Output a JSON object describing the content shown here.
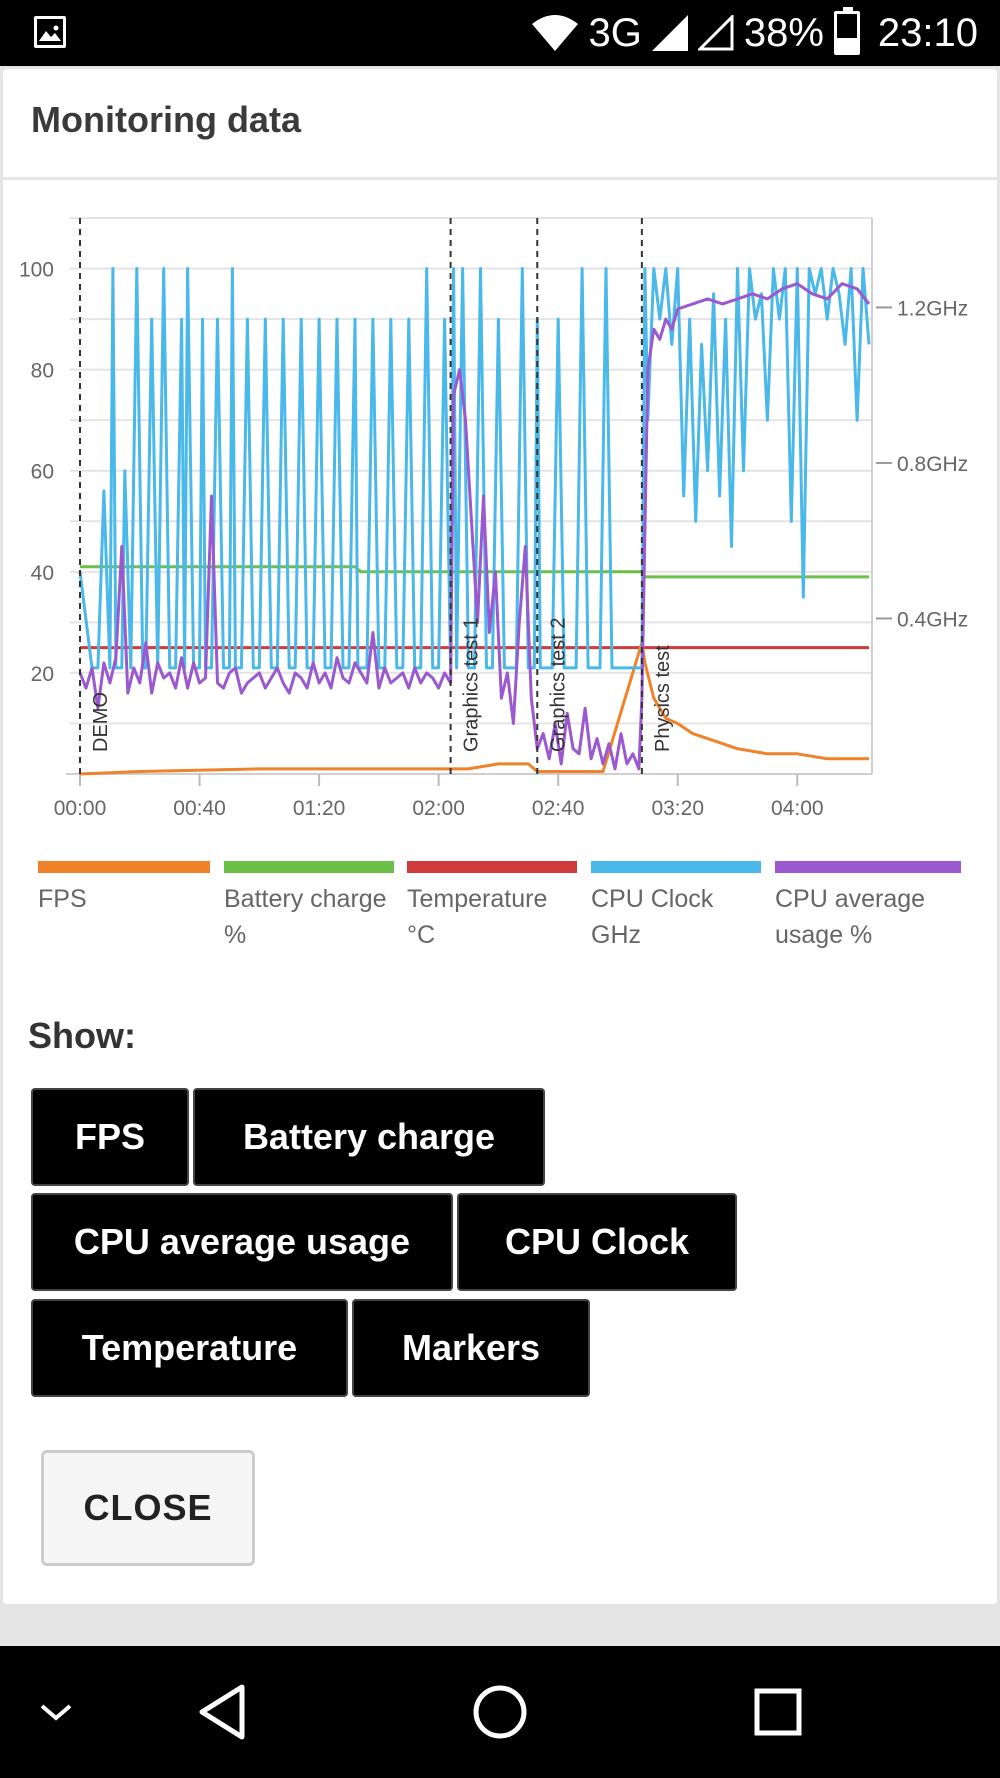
{
  "status_bar": {
    "network": "3G",
    "battery_percent": "38%",
    "time": "23:10",
    "battery_level": 0.38,
    "icons": [
      "image-notification-icon",
      "wifi-icon",
      "signal-icon",
      "signal-empty-icon",
      "battery-icon"
    ]
  },
  "dialog": {
    "title": "Monitoring data",
    "show_label": "Show:",
    "close_label": "CLOSE"
  },
  "toggles": {
    "fps": "FPS",
    "battery": "Battery charge",
    "cpu_usage": "CPU average usage",
    "cpu_clock": "CPU Clock",
    "temperature": "Temperature",
    "markers": "Markers"
  },
  "legend": [
    {
      "label": "FPS",
      "color": "#f0822a"
    },
    {
      "label": "Battery charge %",
      "color": "#6cc04a"
    },
    {
      "label": "Temperature °C",
      "color": "#d03a3a"
    },
    {
      "label": "CPU Clock GHz",
      "color": "#4ab8e8"
    },
    {
      "label": "CPU average usage %",
      "color": "#9b59d0"
    }
  ],
  "chart_data": {
    "type": "line",
    "x_ticks": [
      "00:00",
      "00:40",
      "01:20",
      "02:00",
      "02:40",
      "03:20",
      "04:00"
    ],
    "y_ticks_left": [
      "100",
      "80",
      "60",
      "40",
      "20"
    ],
    "y_ticks_right": [
      "1.2GHz",
      "0.8GHz",
      "0.4GHz"
    ],
    "xlim_seconds": [
      0,
      265
    ],
    "ylim": [
      0,
      110
    ],
    "markers": [
      {
        "label": "DEMO",
        "x": 0
      },
      {
        "label": "Graphics test 1",
        "x": 124
      },
      {
        "label": "Graphics test 2",
        "x": 153
      },
      {
        "label": "Physics test",
        "x": 188
      }
    ],
    "series": [
      {
        "name": "FPS",
        "color": "#f0822a",
        "x": [
          0,
          20,
          60,
          100,
          124,
          130,
          140,
          150,
          153,
          160,
          175,
          188,
          189,
          192,
          196,
          200,
          205,
          210,
          220,
          230,
          240,
          250,
          264
        ],
        "values": [
          0,
          0.5,
          1,
          1,
          1,
          1,
          2,
          2,
          0.5,
          0.5,
          0.5,
          26,
          22,
          15,
          11,
          10,
          8,
          7,
          5,
          4,
          4,
          3,
          3
        ]
      },
      {
        "name": "Battery charge %",
        "color": "#6cc04a",
        "x": [
          0,
          92,
          94,
          188,
          189,
          264
        ],
        "values": [
          41,
          41,
          40,
          40,
          39,
          39
        ]
      },
      {
        "name": "Temperature °C",
        "color": "#d03a3a",
        "x": [
          0,
          264
        ],
        "values": [
          25,
          25
        ]
      },
      {
        "name": "CPU Clock GHz",
        "color": "#4ab8e8",
        "x": [
          0,
          4,
          6,
          8,
          10,
          11,
          12,
          14,
          15,
          17,
          19,
          21,
          22,
          24,
          26,
          28,
          30,
          32,
          34,
          35,
          36,
          38,
          40,
          41,
          42,
          44,
          46,
          48,
          50,
          51,
          52,
          54,
          56,
          58,
          60,
          62,
          64,
          66,
          68,
          70,
          72,
          74,
          76,
          78,
          80,
          82,
          84,
          86,
          88,
          90,
          92,
          93,
          94,
          96,
          98,
          100,
          102,
          104,
          106,
          108,
          110,
          112,
          114,
          116,
          118,
          120,
          122,
          124,
          125,
          126,
          128,
          130,
          132,
          134,
          136,
          138,
          140,
          142,
          144,
          146,
          148,
          150,
          152,
          153,
          154,
          156,
          158,
          160,
          162,
          164,
          166,
          168,
          170,
          172,
          174,
          176,
          178,
          180,
          182,
          184,
          186,
          188,
          189,
          190,
          192,
          194,
          196,
          198,
          200,
          202,
          204,
          206,
          208,
          210,
          212,
          214,
          216,
          218,
          220,
          222,
          224,
          226,
          228,
          230,
          232,
          234,
          236,
          238,
          240,
          242,
          244,
          246,
          248,
          250,
          252,
          254,
          256,
          258,
          260,
          262,
          264
        ],
        "values": [
          40,
          21,
          21,
          56,
          21,
          100,
          21,
          21,
          60,
          21,
          100,
          21,
          21,
          90,
          21,
          100,
          21,
          21,
          90,
          21,
          100,
          21,
          21,
          90,
          21,
          21,
          90,
          21,
          21,
          100,
          21,
          21,
          90,
          21,
          21,
          90,
          21,
          21,
          90,
          21,
          21,
          90,
          21,
          21,
          90,
          21,
          21,
          90,
          21,
          21,
          90,
          21,
          21,
          21,
          90,
          21,
          21,
          90,
          21,
          21,
          90,
          21,
          21,
          100,
          21,
          21,
          90,
          21,
          100,
          21,
          100,
          21,
          21,
          100,
          21,
          21,
          90,
          21,
          21,
          21,
          100,
          21,
          21,
          90,
          21,
          21,
          21,
          90,
          21,
          21,
          21,
          100,
          21,
          21,
          21,
          100,
          21,
          21,
          21,
          21,
          21,
          21,
          100,
          70,
          100,
          90,
          100,
          85,
          100,
          55,
          90,
          50,
          85,
          60,
          95,
          55,
          90,
          45,
          100,
          60,
          100,
          90,
          95,
          70,
          100,
          90,
          100,
          50,
          100,
          35,
          100,
          95,
          100,
          90,
          100,
          95,
          85,
          100,
          70,
          100,
          85
        ]
      },
      {
        "name": "CPU average usage %",
        "color": "#9b59d0",
        "x": [
          0,
          2,
          4,
          6,
          8,
          10,
          12,
          14,
          16,
          18,
          20,
          22,
          24,
          26,
          28,
          30,
          32,
          34,
          36,
          38,
          40,
          42,
          44,
          46,
          48,
          50,
          52,
          54,
          56,
          58,
          60,
          62,
          64,
          66,
          68,
          70,
          72,
          74,
          76,
          78,
          80,
          82,
          84,
          86,
          88,
          90,
          92,
          94,
          96,
          98,
          100,
          102,
          104,
          106,
          108,
          110,
          112,
          114,
          116,
          118,
          120,
          122,
          124,
          125,
          127,
          129,
          131,
          133,
          135,
          137,
          139,
          141,
          143,
          145,
          147,
          149,
          151,
          153,
          155,
          157,
          159,
          161,
          163,
          165,
          167,
          169,
          171,
          173,
          175,
          177,
          179,
          181,
          183,
          185,
          187,
          188,
          190,
          192,
          194,
          196,
          198,
          200,
          205,
          210,
          215,
          220,
          225,
          230,
          235,
          240,
          245,
          250,
          255,
          260,
          264
        ],
        "values": [
          20,
          17,
          21,
          13,
          22,
          18,
          23,
          45,
          16,
          21,
          18,
          26,
          16,
          22,
          19,
          20,
          17,
          23,
          17,
          22,
          18,
          19,
          55,
          18,
          17,
          20,
          21,
          16,
          18,
          19,
          20,
          17,
          19,
          21,
          18,
          16,
          20,
          19,
          17,
          22,
          18,
          20,
          17,
          23,
          19,
          18,
          22,
          20,
          18,
          28,
          17,
          21,
          18,
          19,
          20,
          17,
          21,
          18,
          20,
          19,
          17,
          20,
          18,
          75,
          80,
          70,
          50,
          30,
          55,
          28,
          40,
          15,
          20,
          10,
          30,
          45,
          15,
          5,
          8,
          3,
          10,
          2,
          12,
          5,
          4,
          13,
          3,
          7,
          2,
          6,
          1,
          8,
          2,
          4,
          1,
          15,
          80,
          88,
          86,
          90,
          88,
          92,
          93,
          94,
          93,
          94,
          95,
          94,
          96,
          97,
          95,
          94,
          97,
          96,
          93
        ]
      }
    ]
  }
}
